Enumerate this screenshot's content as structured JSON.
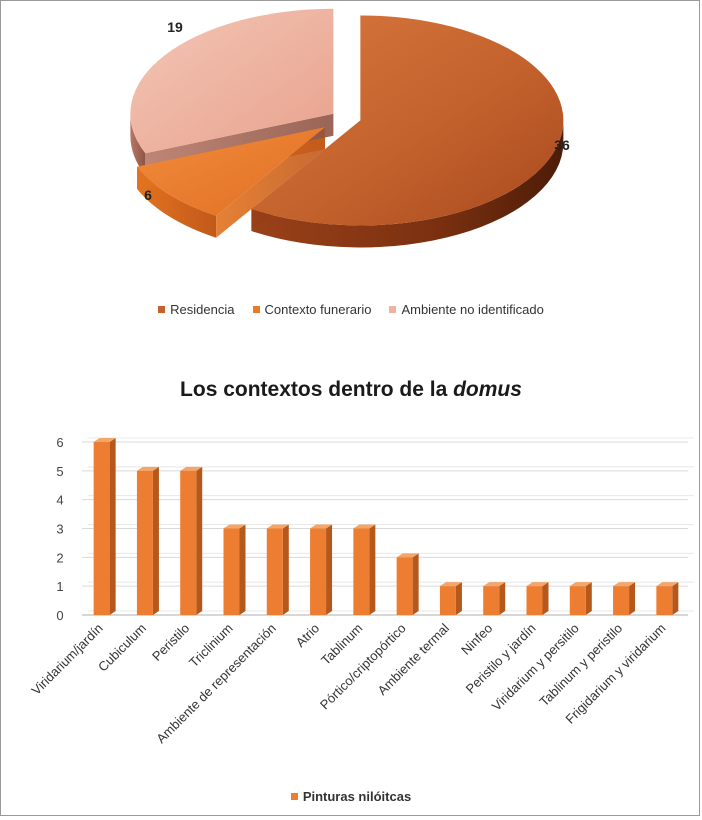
{
  "chart_data": [
    {
      "type": "pie",
      "style": "3d-exploded",
      "categories": [
        "Residencia",
        "Contexto funerario",
        "Ambiente no identificado"
      ],
      "values": [
        36,
        6,
        19
      ],
      "data_labels": [
        "36",
        "6",
        "19"
      ],
      "colors": [
        "#c4622d",
        "#e87a2a",
        "#efb1a0"
      ],
      "legend": "bottom",
      "title": ""
    },
    {
      "type": "bar",
      "style": "3d-column",
      "title_prefix": "Los contextos dentro de la ",
      "title_emphasis": "domus",
      "categories": [
        "Viridarium/jardín",
        "Cubiculum",
        "Peristilo",
        "Triclinium",
        "Ambiente de representación",
        "Atrio",
        "Tablinum",
        "Pórtico/criptopórtico",
        "Ambiente termal",
        "Ninfeo",
        "Peristilo y jardín",
        "Viridarium y persitilo",
        "Tablinum y peristilo",
        "Frigidarium y viridarium"
      ],
      "series": [
        {
          "name": "Pinturas nilóitcas",
          "values": [
            6,
            5,
            5,
            3,
            3,
            3,
            3,
            2,
            1,
            1,
            1,
            1,
            1,
            1
          ],
          "color": "#ed7d31"
        }
      ],
      "ylim": [
        0,
        6
      ],
      "yticks": [
        "0",
        "1",
        "2",
        "3",
        "4",
        "5",
        "6"
      ],
      "grid": true,
      "legend": "bottom"
    }
  ]
}
